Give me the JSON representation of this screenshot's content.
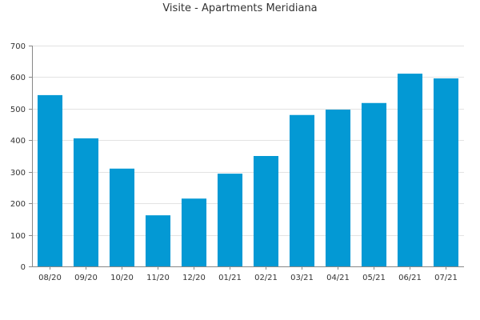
{
  "chart_data": {
    "type": "bar",
    "title": "Visite - Apartments Meridiana",
    "xlabel": "",
    "ylabel": "",
    "categories": [
      "08/20",
      "09/20",
      "10/20",
      "11/20",
      "12/20",
      "01/21",
      "02/21",
      "03/21",
      "04/21",
      "05/21",
      "06/21",
      "07/21"
    ],
    "values": [
      543,
      406,
      310,
      162,
      215,
      294,
      350,
      480,
      497,
      518,
      611,
      596
    ],
    "ylim": [
      0,
      700
    ],
    "yticks": [
      0,
      100,
      200,
      300,
      400,
      500,
      600,
      700
    ],
    "grid": true,
    "legend": "none",
    "colors": {
      "bar": "#0399D4",
      "grid": "#E3E3E3",
      "axis": "#888888",
      "text": "#333333"
    }
  }
}
